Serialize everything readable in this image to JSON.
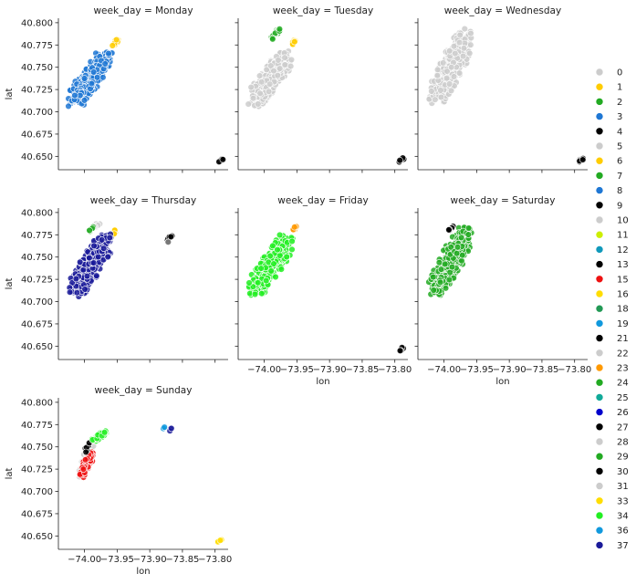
{
  "chart_data": {
    "type": "scatter",
    "facet_variable": "week_day",
    "xlabel": "lon",
    "ylabel": "lat",
    "xlim": [
      -74.04,
      -73.78
    ],
    "ylim": [
      40.635,
      40.805
    ],
    "xticks": [
      -74.0,
      -73.95,
      -73.9,
      -73.85,
      -73.8
    ],
    "xtick_labels": [
      "−74.00",
      "−73.95",
      "−73.90",
      "−73.85",
      "−73.80"
    ],
    "yticks": [
      40.65,
      40.675,
      40.7,
      40.725,
      40.75,
      40.775,
      40.8
    ],
    "ytick_labels": [
      "40.650",
      "40.675",
      "40.700",
      "40.725",
      "40.750",
      "40.775",
      "40.800"
    ],
    "grid": false,
    "legend_position": "right",
    "legend": [
      {
        "label": "0",
        "color": "#cccccc"
      },
      {
        "label": "1",
        "color": "#ffcc00"
      },
      {
        "label": "2",
        "color": "#22aa22"
      },
      {
        "label": "3",
        "color": "#1f77d4"
      },
      {
        "label": "4",
        "color": "#000000"
      },
      {
        "label": "5",
        "color": "#cccccc"
      },
      {
        "label": "6",
        "color": "#ffcc00"
      },
      {
        "label": "7",
        "color": "#22aa22"
      },
      {
        "label": "8",
        "color": "#1f77d4"
      },
      {
        "label": "9",
        "color": "#000000"
      },
      {
        "label": "10",
        "color": "#cccccc"
      },
      {
        "label": "11",
        "color": "#ccee00"
      },
      {
        "label": "12",
        "color": "#1199bb"
      },
      {
        "label": "13",
        "color": "#000000"
      },
      {
        "label": "15",
        "color": "#ee1111"
      },
      {
        "label": "16",
        "color": "#ffdd00"
      },
      {
        "label": "18",
        "color": "#229955"
      },
      {
        "label": "19",
        "color": "#1199dd"
      },
      {
        "label": "21",
        "color": "#000000"
      },
      {
        "label": "22",
        "color": "#cccccc"
      },
      {
        "label": "23",
        "color": "#ff9900"
      },
      {
        "label": "24",
        "color": "#22aa22"
      },
      {
        "label": "25",
        "color": "#11aa99"
      },
      {
        "label": "26",
        "color": "#0000cc"
      },
      {
        "label": "27",
        "color": "#000000"
      },
      {
        "label": "28",
        "color": "#cccccc"
      },
      {
        "label": "29",
        "color": "#22aa22"
      },
      {
        "label": "30",
        "color": "#000000"
      },
      {
        "label": "31",
        "color": "#cccccc"
      },
      {
        "label": "33",
        "color": "#ffdd00"
      },
      {
        "label": "34",
        "color": "#22ee22"
      },
      {
        "label": "36",
        "color": "#1199dd"
      },
      {
        "label": "37",
        "color": "#1a1a99"
      }
    ],
    "panels": [
      {
        "title": "week_day = Monday",
        "clusters": [
          {
            "color": "#22aa22",
            "lon": [
              -74.01,
              -73.99
            ],
            "lat": [
              40.715,
              40.74
            ],
            "n": 40
          },
          {
            "color": "#1f77d4",
            "lon": [
              -74.025,
              -73.955
            ],
            "lat": [
              40.705,
              40.77
            ],
            "n": 260
          },
          {
            "color": "#ffcc00",
            "lon": [
              -73.958,
              -73.948
            ],
            "lat": [
              40.773,
              40.782
            ],
            "n": 18
          },
          {
            "color": "#000000",
            "lon": [
              -73.795,
              -73.785
            ],
            "lat": [
              40.643,
              40.649
            ],
            "n": 7
          }
        ]
      },
      {
        "title": "week_day = Tuesday",
        "clusters": [
          {
            "color": "#cccccc",
            "lon": [
              -74.025,
              -73.955
            ],
            "lat": [
              40.705,
              40.77
            ],
            "n": 280
          },
          {
            "color": "#22aa22",
            "lon": [
              -73.99,
              -73.975
            ],
            "lat": [
              40.78,
              40.795
            ],
            "n": 16
          },
          {
            "color": "#ffcc00",
            "lon": [
              -73.96,
              -73.95
            ],
            "lat": [
              40.772,
              40.782
            ],
            "n": 10
          },
          {
            "color": "#000000",
            "lon": [
              -73.795,
              -73.785
            ],
            "lat": [
              40.643,
              40.649
            ],
            "n": 7
          }
        ]
      },
      {
        "title": "week_day = Wednesday",
        "clusters": [
          {
            "color": "#cccccc",
            "lon": [
              -74.025,
              -73.955
            ],
            "lat": [
              40.705,
              40.795
            ],
            "n": 320
          },
          {
            "color": "#000000",
            "lon": [
              -73.795,
              -73.785
            ],
            "lat": [
              40.643,
              40.649
            ],
            "n": 7
          }
        ]
      },
      {
        "title": "week_day = Thursday",
        "clusters": [
          {
            "color": "#cccccc",
            "lon": [
              -73.99,
              -73.975
            ],
            "lat": [
              40.78,
              40.79
            ],
            "n": 14
          },
          {
            "color": "#22aa22",
            "lon": [
              -73.995,
              -73.985
            ],
            "lat": [
              40.778,
              40.784
            ],
            "n": 6
          },
          {
            "color": "#ffcc00",
            "lon": [
              -73.96,
              -73.95
            ],
            "lat": [
              40.772,
              40.782
            ],
            "n": 10
          },
          {
            "color": "#1a1a99",
            "lon": [
              -74.025,
              -73.955
            ],
            "lat": [
              40.705,
              40.778
            ],
            "n": 320
          },
          {
            "color": "#000000",
            "lon": [
              -73.875,
              -73.865
            ],
            "lat": [
              40.768,
              40.775
            ],
            "n": 6
          },
          {
            "color": "#777777",
            "lon": [
              -73.875,
              -73.87
            ],
            "lat": [
              40.765,
              40.768
            ],
            "n": 2
          }
        ]
      },
      {
        "title": "week_day = Friday",
        "clusters": [
          {
            "color": "#22ee22",
            "lon": [
              -74.025,
              -73.955
            ],
            "lat": [
              40.705,
              40.775
            ],
            "n": 300
          },
          {
            "color": "#ff9900",
            "lon": [
              -73.958,
              -73.95
            ],
            "lat": [
              40.778,
              40.785
            ],
            "n": 5
          },
          {
            "color": "#000000",
            "lon": [
              -73.795,
              -73.785
            ],
            "lat": [
              40.643,
              40.649
            ],
            "n": 7
          }
        ]
      },
      {
        "title": "week_day = Saturday",
        "clusters": [
          {
            "color": "#22aa22",
            "lon": [
              -74.025,
              -73.955
            ],
            "lat": [
              40.705,
              40.785
            ],
            "n": 310
          },
          {
            "color": "#000000",
            "lon": [
              -73.995,
              -73.985
            ],
            "lat": [
              40.778,
              40.785
            ],
            "n": 7
          }
        ]
      },
      {
        "title": "week_day = Sunday",
        "clusters": [
          {
            "color": "#cccccc",
            "lon": [
              -74.01,
              -73.985
            ],
            "lat": [
              40.715,
              40.755
            ],
            "n": 60
          },
          {
            "color": "#ee1111",
            "lon": [
              -74.01,
              -73.985
            ],
            "lat": [
              40.715,
              40.745
            ],
            "n": 90
          },
          {
            "color": "#000000",
            "lon": [
              -74.002,
              -73.99
            ],
            "lat": [
              40.743,
              40.755
            ],
            "n": 14
          },
          {
            "color": "#22ee22",
            "lon": [
              -73.99,
              -73.965
            ],
            "lat": [
              40.755,
              40.768
            ],
            "n": 60
          },
          {
            "color": "#1199dd",
            "lon": [
              -73.88,
              -73.874
            ],
            "lat": [
              40.77,
              40.775
            ],
            "n": 5
          },
          {
            "color": "#1a1a99",
            "lon": [
              -73.87,
              -73.866
            ],
            "lat": [
              40.767,
              40.772
            ],
            "n": 3
          },
          {
            "color": "#ffdd00",
            "lon": [
              -73.796,
              -73.787
            ],
            "lat": [
              40.643,
              40.649
            ],
            "n": 8
          }
        ]
      }
    ]
  }
}
